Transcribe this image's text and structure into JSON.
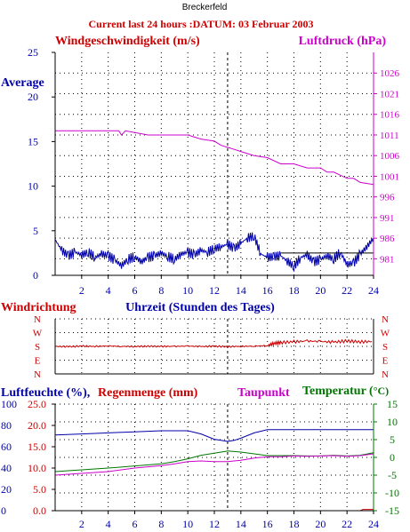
{
  "station": "Breckerfeld",
  "title": "Current last 24 hours :DATUM: 03 Februar 2003",
  "colors": {
    "red": "#cc0000",
    "magenta": "#cc00cc",
    "navy": "#0000aa",
    "green": "#007700",
    "axis_black": "#000000"
  },
  "chart_data": [
    {
      "type": "line",
      "id": "wind-pressure",
      "left_label": "Windgeschwindigkeit (m/s)",
      "right_label": "Luftdruck (hPa)",
      "average_label": "Average",
      "x_ticks": [
        2,
        4,
        6,
        8,
        10,
        12,
        14,
        16,
        18,
        20,
        22,
        24
      ],
      "xlim": [
        0,
        24
      ],
      "left_ylim": [
        0,
        25
      ],
      "left_ticks": [
        0,
        5,
        10,
        15,
        20,
        25
      ],
      "right_ylim": [
        977,
        1031
      ],
      "right_ticks": [
        981,
        986,
        991,
        996,
        1001,
        1006,
        1011,
        1016,
        1021,
        1026
      ],
      "grid": true,
      "marker_x": 13,
      "series": [
        {
          "name": "Luftdruck (hPa)",
          "color": "#cc00cc",
          "axis": "right",
          "x": [
            0,
            4.8,
            5.0,
            5.3,
            7,
            10,
            11,
            12,
            12.5,
            13,
            13.5,
            14,
            15,
            16,
            17,
            18,
            19,
            20,
            20.5,
            21,
            22,
            22.5,
            23,
            24
          ],
          "y": [
            1012.0,
            1012.0,
            1011.0,
            1012.0,
            1011.0,
            1011.0,
            1010.0,
            1009.5,
            1008.5,
            1008.0,
            1007.5,
            1007.0,
            1006.0,
            1005.5,
            1004.0,
            1004.0,
            1003.0,
            1003.0,
            1002.0,
            1002.0,
            1000.5,
            1000.5,
            999.5,
            999.0
          ]
        },
        {
          "name": "Windgeschwindigkeit (m/s)",
          "color": "#0000aa",
          "axis": "left",
          "x": [
            0,
            0.5,
            1,
            1.5,
            2,
            2.5,
            3,
            3.5,
            4,
            4.5,
            5,
            5.5,
            6,
            6.5,
            7,
            7.5,
            8,
            8.5,
            9,
            9.5,
            10,
            10.5,
            11,
            11.5,
            12,
            12.5,
            13,
            13.5,
            14,
            14.5,
            15,
            15.5,
            16,
            16.5,
            17,
            17.5,
            18,
            18.5,
            19,
            19.5,
            20,
            20.5,
            21,
            21.5,
            22,
            22.5,
            23,
            23.5,
            24
          ],
          "y": [
            4.0,
            2.8,
            2.2,
            2.6,
            2.3,
            2.6,
            2.0,
            2.4,
            2.2,
            1.7,
            1.1,
            1.8,
            2.1,
            1.5,
            2.0,
            2.2,
            2.5,
            2.1,
            1.8,
            2.4,
            2.6,
            2.3,
            2.8,
            2.6,
            3.0,
            3.2,
            3.5,
            3.0,
            3.6,
            4.2,
            4.4,
            2.4,
            2.0,
            2.1,
            2.2,
            1.6,
            1.0,
            2.0,
            2.3,
            1.5,
            1.8,
            2.2,
            1.8,
            2.6,
            1.2,
            1.4,
            2.4,
            3.2,
            4.2
          ]
        }
      ],
      "average": {
        "color": "#000000",
        "value": 2.5,
        "x": [
          17,
          24
        ]
      }
    },
    {
      "type": "line",
      "id": "direction",
      "left_label": "Windrichtung",
      "xlabel": "Uhrzeit (Stunden des Tages)",
      "y_labels": [
        "N",
        "W",
        "S",
        "E",
        "N"
      ],
      "xlim": [
        0,
        24
      ],
      "grid": true,
      "marker_x": 13,
      "series": [
        {
          "name": "Windrichtung",
          "color": "#cc0000",
          "x": [
            0,
            1,
            2,
            3,
            4,
            5,
            6,
            7,
            8,
            9,
            10,
            11,
            12,
            13,
            14,
            15,
            16,
            16.5,
            17,
            18,
            19,
            20,
            21,
            22,
            23,
            24
          ],
          "y": [
            "S",
            "S",
            "S",
            "S",
            "S",
            "S",
            "S",
            "S",
            "S",
            "S",
            "S",
            "S",
            "S",
            "S",
            "S",
            "S",
            "S",
            "S",
            "S",
            "S",
            "S",
            "S",
            "S",
            "S",
            "S",
            "S"
          ],
          "note_values": [
            180,
            178,
            182,
            180,
            183,
            180,
            179,
            181,
            180,
            180,
            182,
            179,
            181,
            178,
            180,
            182,
            185,
            200,
            205,
            210,
            215,
            212,
            208,
            215,
            210,
            212
          ]
        }
      ]
    },
    {
      "type": "line",
      "id": "humidity",
      "humidity_label": "Luftfeuchte (%),",
      "rain_label": "Regenmenge (mm)",
      "dew_label": "Taupunkt",
      "temp_label": "Temperatur (",
      "temp_label_unit": "°C)",
      "x_ticks": [
        2,
        4,
        6,
        8,
        10,
        12,
        14,
        16,
        18,
        20,
        22,
        24
      ],
      "xlim": [
        0,
        24
      ],
      "humidity_ticks": [
        "100",
        "80",
        "60",
        "40",
        "20",
        "0"
      ],
      "rain_ticks": [
        "25.0",
        "20.0",
        "15.0",
        "10.0",
        "5.0",
        "0.0"
      ],
      "temp_ticks": [
        "15",
        "10",
        "5",
        "0",
        "-5",
        "-10",
        "-15"
      ],
      "humidity_ylim": [
        0,
        100
      ],
      "temp_ylim": [
        -15,
        15
      ],
      "grid": true,
      "marker_x": 13,
      "series": [
        {
          "name": "Luftfeuchte (%)",
          "color": "#0000aa",
          "axis": "humidity",
          "x": [
            0,
            2,
            4,
            6,
            8,
            9,
            10,
            11,
            12,
            12.5,
            13,
            13.5,
            14,
            15,
            16,
            17,
            18,
            20,
            22,
            24
          ],
          "y": [
            71,
            72,
            73,
            74,
            75,
            75,
            75,
            72,
            67,
            66,
            65,
            66,
            68,
            73,
            76,
            76,
            76,
            76,
            76,
            76
          ]
        },
        {
          "name": "Temperatur (°C)",
          "color": "#007700",
          "axis": "temp",
          "x": [
            0,
            2,
            4,
            6,
            8,
            9,
            10,
            11,
            12,
            13,
            14,
            15,
            16,
            17,
            18,
            19,
            20,
            21,
            22,
            23,
            24
          ],
          "y": [
            -4.0,
            -3.5,
            -3.0,
            -2.4,
            -1.8,
            -1.2,
            -0.4,
            0.6,
            1.2,
            1.8,
            1.5,
            1.0,
            0.5,
            0.5,
            0.5,
            0.4,
            0.4,
            0.6,
            0.4,
            0.6,
            1.3
          ]
        },
        {
          "name": "Taupunkt",
          "color": "#cc00cc",
          "axis": "temp",
          "x": [
            0,
            2,
            4,
            6,
            8,
            9,
            10,
            11,
            12,
            13,
            14,
            15,
            16,
            17,
            18,
            19,
            20,
            21,
            22,
            23,
            24
          ],
          "y": [
            -5.0,
            -4.5,
            -4.0,
            -3.0,
            -2.3,
            -1.8,
            -1.2,
            -1.0,
            -1.2,
            -1.2,
            -0.8,
            -0.2,
            0.2,
            0.2,
            0.4,
            0.3,
            0.4,
            0.5,
            0.3,
            0.5,
            1.0
          ]
        },
        {
          "name": "Regenmenge (mm)",
          "color": "#cc0000",
          "axis": "humidity",
          "x": [
            0,
            23,
            23.2,
            24
          ],
          "y": [
            0,
            0,
            1.2,
            1.2
          ]
        }
      ]
    }
  ]
}
